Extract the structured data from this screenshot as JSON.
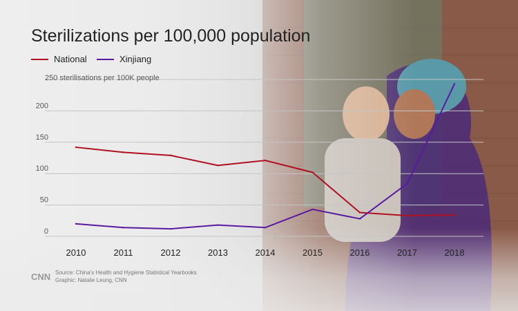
{
  "chart_data": {
    "type": "line",
    "title": "Sterilizations per 100,000 population",
    "x": [
      "2010",
      "2011",
      "2012",
      "2013",
      "2014",
      "2015",
      "2016",
      "2017",
      "2018"
    ],
    "series": [
      {
        "name": "National",
        "values": [
          142,
          134,
          129,
          113,
          121,
          102,
          38,
          33,
          34
        ]
      },
      {
        "name": "Xinjiang",
        "values": [
          20,
          14,
          12,
          18,
          14,
          43,
          28,
          84,
          243
        ]
      }
    ],
    "yticks": [
      0,
      50,
      100,
      150,
      200
    ],
    "ytop_label": "250 sterilisations per 100K people",
    "ylim": [
      0,
      250
    ],
    "grid": true,
    "legend": "top-left"
  },
  "colors": {
    "National": "#b01020",
    "Xinjiang": "#5a1aa0"
  },
  "footer": {
    "logo": "CNN",
    "source": "Source: China's Health and Hygiene Statistical Yearbooks",
    "graphic": "Graphic: Natalie Leung, CNN"
  }
}
